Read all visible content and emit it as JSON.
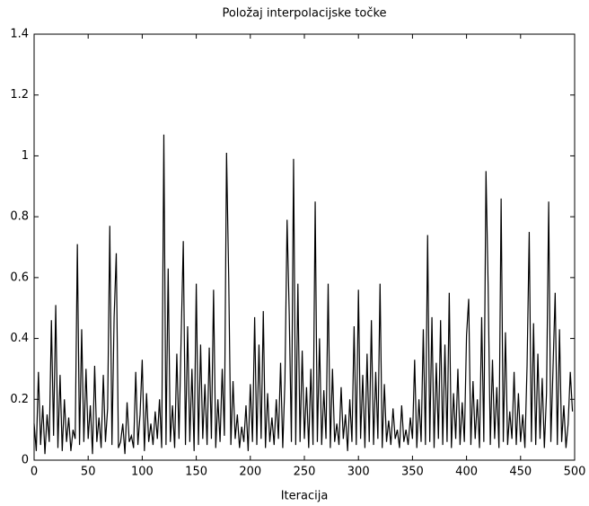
{
  "chart_data": {
    "type": "line",
    "title": "Položaj interpolacijske točke",
    "xlabel": "Iteracija",
    "color": "#000000",
    "x": [
      0,
      2,
      4,
      6,
      8,
      10,
      12,
      14,
      16,
      18,
      20,
      22,
      24,
      26,
      28,
      30,
      32,
      34,
      36,
      38,
      40,
      42,
      44,
      46,
      48,
      50,
      52,
      54,
      56,
      58,
      60,
      62,
      64,
      66,
      68,
      70,
      72,
      74,
      76,
      78,
      80,
      82,
      84,
      86,
      88,
      90,
      92,
      94,
      96,
      98,
      100,
      102,
      104,
      106,
      108,
      110,
      112,
      114,
      116,
      118,
      120,
      122,
      124,
      126,
      128,
      130,
      132,
      134,
      136,
      138,
      140,
      142,
      144,
      146,
      148,
      150,
      152,
      154,
      156,
      158,
      160,
      162,
      164,
      166,
      168,
      170,
      172,
      174,
      176,
      178,
      180,
      182,
      184,
      186,
      188,
      190,
      192,
      194,
      196,
      198,
      200,
      202,
      204,
      206,
      208,
      210,
      212,
      214,
      216,
      218,
      220,
      222,
      224,
      226,
      228,
      230,
      232,
      234,
      236,
      238,
      240,
      242,
      244,
      246,
      248,
      250,
      252,
      254,
      256,
      258,
      260,
      262,
      264,
      266,
      268,
      270,
      272,
      274,
      276,
      278,
      280,
      282,
      284,
      286,
      288,
      290,
      292,
      294,
      296,
      298,
      300,
      302,
      304,
      306,
      308,
      310,
      312,
      314,
      316,
      318,
      320,
      322,
      324,
      326,
      328,
      330,
      332,
      334,
      336,
      338,
      340,
      342,
      344,
      346,
      348,
      350,
      352,
      354,
      356,
      358,
      360,
      362,
      364,
      366,
      368,
      370,
      372,
      374,
      376,
      378,
      380,
      382,
      384,
      386,
      388,
      390,
      392,
      394,
      396,
      398,
      400,
      402,
      404,
      406,
      408,
      410,
      412,
      414,
      416,
      418,
      420,
      422,
      424,
      426,
      428,
      430,
      432,
      434,
      436,
      438,
      440,
      442,
      444,
      446,
      448,
      450,
      452,
      454,
      456,
      458,
      460,
      462,
      464,
      466,
      468,
      470,
      472,
      474,
      476,
      478,
      480,
      482,
      484,
      486,
      488,
      490,
      492,
      494,
      496,
      498
    ],
    "values": [
      0.12,
      0.03,
      0.29,
      0.05,
      0.18,
      0.02,
      0.15,
      0.06,
      0.46,
      0.08,
      0.51,
      0.04,
      0.28,
      0.03,
      0.2,
      0.06,
      0.14,
      0.03,
      0.1,
      0.07,
      0.71,
      0.05,
      0.43,
      0.06,
      0.3,
      0.07,
      0.18,
      0.02,
      0.31,
      0.06,
      0.14,
      0.04,
      0.28,
      0.06,
      0.17,
      0.77,
      0.05,
      0.47,
      0.68,
      0.04,
      0.06,
      0.12,
      0.02,
      0.19,
      0.06,
      0.08,
      0.04,
      0.29,
      0.05,
      0.15,
      0.33,
      0.03,
      0.22,
      0.06,
      0.12,
      0.05,
      0.16,
      0.07,
      0.2,
      0.04,
      1.07,
      0.05,
      0.63,
      0.06,
      0.18,
      0.04,
      0.35,
      0.07,
      0.4,
      0.72,
      0.05,
      0.44,
      0.06,
      0.3,
      0.03,
      0.58,
      0.05,
      0.38,
      0.07,
      0.25,
      0.05,
      0.37,
      0.07,
      0.56,
      0.04,
      0.2,
      0.06,
      0.3,
      0.08,
      1.01,
      0.6,
      0.05,
      0.26,
      0.07,
      0.15,
      0.04,
      0.11,
      0.06,
      0.18,
      0.03,
      0.25,
      0.06,
      0.47,
      0.05,
      0.38,
      0.07,
      0.49,
      0.04,
      0.22,
      0.06,
      0.14,
      0.05,
      0.2,
      0.07,
      0.32,
      0.04,
      0.26,
      0.79,
      0.48,
      0.06,
      0.99,
      0.05,
      0.58,
      0.06,
      0.36,
      0.07,
      0.24,
      0.04,
      0.3,
      0.05,
      0.85,
      0.06,
      0.4,
      0.05,
      0.23,
      0.07,
      0.58,
      0.04,
      0.3,
      0.06,
      0.12,
      0.05,
      0.24,
      0.07,
      0.15,
      0.03,
      0.2,
      0.06,
      0.44,
      0.05,
      0.56,
      0.07,
      0.28,
      0.04,
      0.35,
      0.06,
      0.46,
      0.05,
      0.29,
      0.07,
      0.58,
      0.04,
      0.25,
      0.06,
      0.13,
      0.05,
      0.17,
      0.07,
      0.1,
      0.04,
      0.18,
      0.06,
      0.1,
      0.05,
      0.14,
      0.07,
      0.33,
      0.04,
      0.2,
      0.06,
      0.43,
      0.05,
      0.74,
      0.06,
      0.47,
      0.04,
      0.32,
      0.07,
      0.46,
      0.05,
      0.38,
      0.06,
      0.55,
      0.04,
      0.22,
      0.07,
      0.3,
      0.05,
      0.19,
      0.06,
      0.41,
      0.53,
      0.05,
      0.26,
      0.07,
      0.2,
      0.04,
      0.47,
      0.06,
      0.95,
      0.57,
      0.05,
      0.33,
      0.07,
      0.24,
      0.04,
      0.86,
      0.06,
      0.42,
      0.05,
      0.16,
      0.07,
      0.29,
      0.05,
      0.22,
      0.06,
      0.15,
      0.04,
      0.31,
      0.75,
      0.06,
      0.45,
      0.05,
      0.35,
      0.07,
      0.27,
      0.04,
      0.22,
      0.85,
      0.06,
      0.3,
      0.55,
      0.05,
      0.43,
      0.06,
      0.18,
      0.04,
      0.12,
      0.29,
      0.16
    ],
    "xlim": [
      0,
      500
    ],
    "xticks": [
      0,
      50,
      100,
      150,
      200,
      250,
      300,
      350,
      400,
      450,
      500
    ],
    "ylim": [
      0,
      1.4
    ],
    "yticks": [
      0,
      0.2,
      0.4,
      0.6,
      0.8,
      1,
      1.2,
      1.4
    ]
  }
}
